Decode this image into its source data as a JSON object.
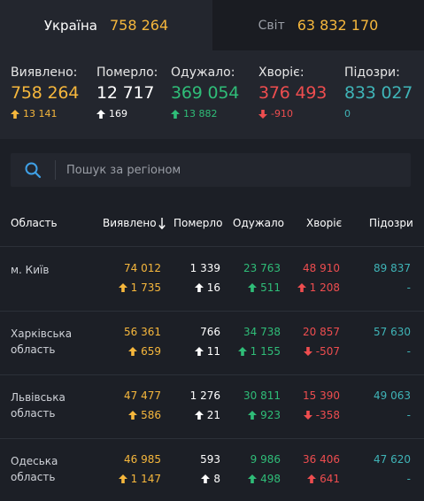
{
  "tabs": [
    {
      "name": "Україна",
      "value": "758 264"
    },
    {
      "name": "Світ",
      "value": "63 832 170"
    }
  ],
  "stats": [
    {
      "label": "Виявлено:",
      "value": "758 264",
      "delta": "13 141",
      "dir": "up"
    },
    {
      "label": "Померло:",
      "value": "12 717",
      "delta": "169",
      "dir": "up"
    },
    {
      "label": "Одужало:",
      "value": "369 054",
      "delta": "13 882",
      "dir": "up"
    },
    {
      "label": "Хворіє:",
      "value": "376 493",
      "delta": "-910",
      "dir": "down"
    },
    {
      "label": "Підозри:",
      "value": "833 027",
      "delta": "0",
      "dir": "none"
    }
  ],
  "search": {
    "placeholder": "Пошук за регіоном"
  },
  "table": {
    "headers": {
      "region": "Область",
      "detected": "Виявлено",
      "died": "Померло",
      "recovered": "Одужало",
      "sick": "Хворіє",
      "suspected": "Підозри"
    },
    "rows": [
      {
        "region": "м. Київ",
        "detected": "74 012",
        "detected_d": "1 735",
        "died": "1 339",
        "died_d": "16",
        "recovered": "23 763",
        "recovered_d": "511",
        "sick": "48 910",
        "sick_d": "1 208",
        "sick_dir": "up",
        "suspected": "89 837",
        "suspected_d": "-"
      },
      {
        "region": "Харківська область",
        "detected": "56 361",
        "detected_d": "659",
        "died": "766",
        "died_d": "11",
        "recovered": "34 738",
        "recovered_d": "1 155",
        "sick": "20 857",
        "sick_d": "-507",
        "sick_dir": "down",
        "suspected": "57 630",
        "suspected_d": "-"
      },
      {
        "region": "Львівська область",
        "detected": "47 477",
        "detected_d": "586",
        "died": "1 276",
        "died_d": "21",
        "recovered": "30 811",
        "recovered_d": "923",
        "sick": "15 390",
        "sick_d": "-358",
        "sick_dir": "down",
        "suspected": "49 063",
        "suspected_d": "-"
      },
      {
        "region": "Одеська область",
        "detected": "46 985",
        "detected_d": "1 147",
        "died": "593",
        "died_d": "8",
        "recovered": "9 986",
        "recovered_d": "498",
        "sick": "36 406",
        "sick_d": "641",
        "sick_dir": "up",
        "suspected": "47 620",
        "suspected_d": "-"
      }
    ]
  },
  "colors": {
    "yellow": "#f6b73c",
    "white": "#ffffff",
    "green": "#2fbd78",
    "red": "#ee4d4f",
    "teal": "#3fb4b7"
  },
  "icons": {
    "search": "search-icon",
    "sort": "sort-down-arrow-icon",
    "up": "arrow-up-icon",
    "down": "arrow-down-icon"
  }
}
